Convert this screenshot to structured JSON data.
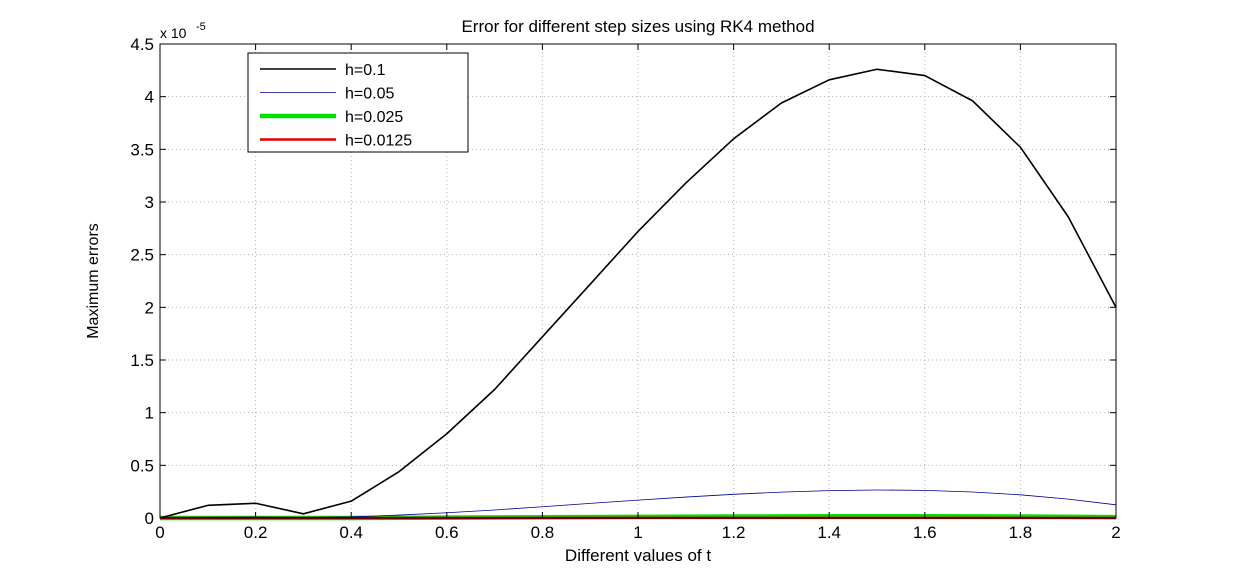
{
  "chart_data": {
    "type": "line",
    "title": "Error for different step sizes using RK4 method",
    "xlabel": "Different values of t",
    "ylabel": "Maximum errors",
    "y_exponent_prefix": "x 10",
    "y_exponent_power": "-5",
    "xlim": [
      0,
      2
    ],
    "ylim": [
      0,
      4.5
    ],
    "x_ticks": [
      "0",
      "0.2",
      "0.4",
      "0.6",
      "0.8",
      "1",
      "1.2",
      "1.4",
      "1.6",
      "1.8",
      "2"
    ],
    "y_ticks": [
      "0",
      "0.5",
      "1",
      "1.5",
      "2",
      "2.5",
      "3",
      "3.5",
      "4",
      "4.5"
    ],
    "grid": true,
    "legend_position": "top-left",
    "series": [
      {
        "name": "h=0.1",
        "color": "#000000",
        "x": [
          0,
          0.1,
          0.2,
          0.3,
          0.4,
          0.5,
          0.6,
          0.7,
          0.8,
          0.9,
          1.0,
          1.1,
          1.2,
          1.3,
          1.4,
          1.5,
          1.6,
          1.7,
          1.8,
          1.9,
          2.0
        ],
        "values": [
          0,
          0.12,
          0.14,
          0.04,
          0.16,
          0.44,
          0.8,
          1.22,
          1.72,
          2.22,
          2.72,
          3.18,
          3.6,
          3.94,
          4.16,
          4.26,
          4.2,
          3.96,
          3.52,
          2.86,
          2.0
        ]
      },
      {
        "name": "h=0.05",
        "color": "#00008b",
        "x": [
          0,
          0.1,
          0.2,
          0.3,
          0.4,
          0.5,
          0.6,
          0.7,
          0.8,
          0.9,
          1.0,
          1.1,
          1.2,
          1.3,
          1.4,
          1.5,
          1.6,
          1.7,
          1.8,
          1.9,
          2.0
        ],
        "values": [
          0,
          0.005,
          0.008,
          0.003,
          0.01,
          0.028,
          0.05,
          0.076,
          0.107,
          0.139,
          0.17,
          0.199,
          0.225,
          0.246,
          0.26,
          0.266,
          0.262,
          0.247,
          0.22,
          0.179,
          0.125
        ]
      },
      {
        "name": "h=0.025",
        "color": "#00e000",
        "x": [
          0,
          0.2,
          0.4,
          0.6,
          0.8,
          1.0,
          1.2,
          1.4,
          1.6,
          1.8,
          2.0
        ],
        "values": [
          0,
          0.0005,
          0.0006,
          0.003,
          0.007,
          0.011,
          0.014,
          0.016,
          0.016,
          0.014,
          0.008
        ]
      },
      {
        "name": "h=0.0125",
        "color": "#e00000",
        "x": [
          0,
          0.2,
          0.4,
          0.6,
          0.8,
          1.0,
          1.2,
          1.4,
          1.6,
          1.8,
          2.0
        ],
        "values": [
          0,
          0.0001,
          0.0001,
          0.0002,
          0.0004,
          0.0007,
          0.0009,
          0.001,
          0.001,
          0.0009,
          0.0005
        ]
      }
    ]
  }
}
